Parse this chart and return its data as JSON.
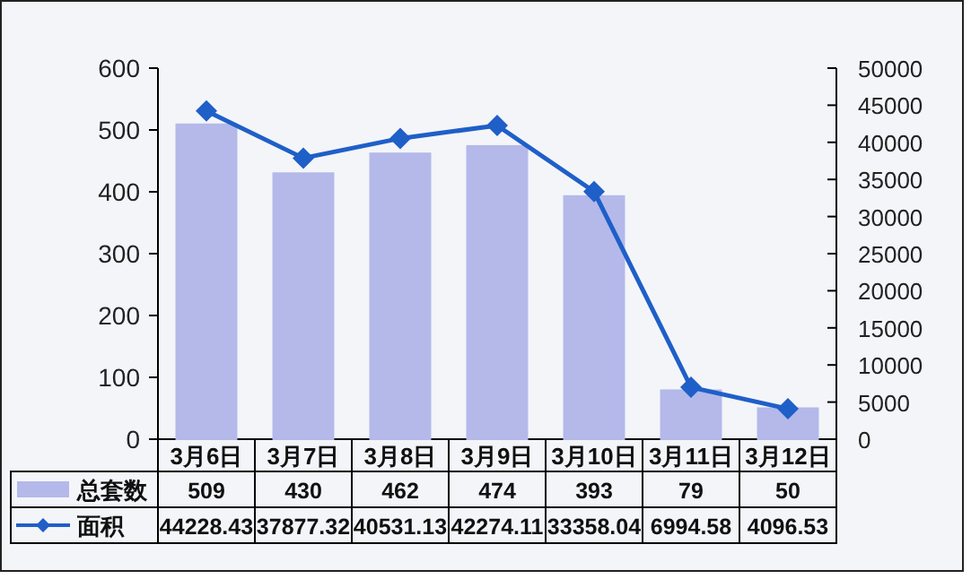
{
  "chart_data": {
    "type": "bar",
    "categories": [
      "3月6日",
      "3月7日",
      "3月8日",
      "3月9日",
      "3月10日",
      "3月11日",
      "3月12日"
    ],
    "series": [
      {
        "name": "总套数",
        "color": "#b4b9ea",
        "values": [
          509,
          430,
          462,
          474,
          393,
          79,
          50
        ]
      },
      {
        "name": "面积",
        "type": "line",
        "axis": "y2",
        "color": "#1f5fc8",
        "values": [
          44228.43,
          37877.32,
          40531.13,
          42274.11,
          33358.04,
          6994.58,
          4096.53
        ]
      }
    ],
    "ylim": [
      0,
      600
    ],
    "yticks": [
      0,
      100,
      200,
      300,
      400,
      500,
      600
    ],
    "y2lim": [
      0,
      50000
    ],
    "y2ticks": [
      0,
      5000,
      10000,
      15000,
      20000,
      25000,
      30000,
      35000,
      40000,
      45000,
      50000
    ],
    "data_labels": true,
    "legend": "bottom",
    "marker": "diamond",
    "line_style": "solid"
  }
}
